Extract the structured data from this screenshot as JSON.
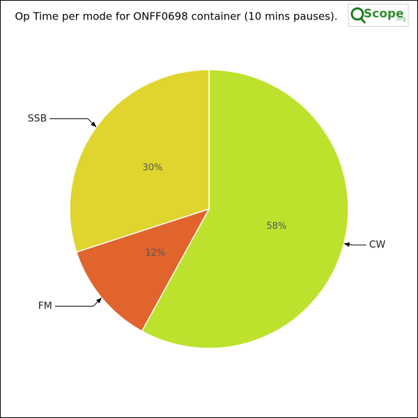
{
  "chart_data": {
    "type": "pie",
    "title": "Op Time per mode for ONFF0698 container (10 mins pauses).",
    "categories": [
      "CW",
      "FM",
      "SSB"
    ],
    "values": [
      58,
      12,
      30
    ],
    "value_labels": [
      "58%",
      "12%",
      "30%"
    ],
    "colors": [
      "#bde22e",
      "#e0642c",
      "#e0d52e"
    ]
  },
  "logo": {
    "text": "Scope",
    "suffix": ".org"
  }
}
